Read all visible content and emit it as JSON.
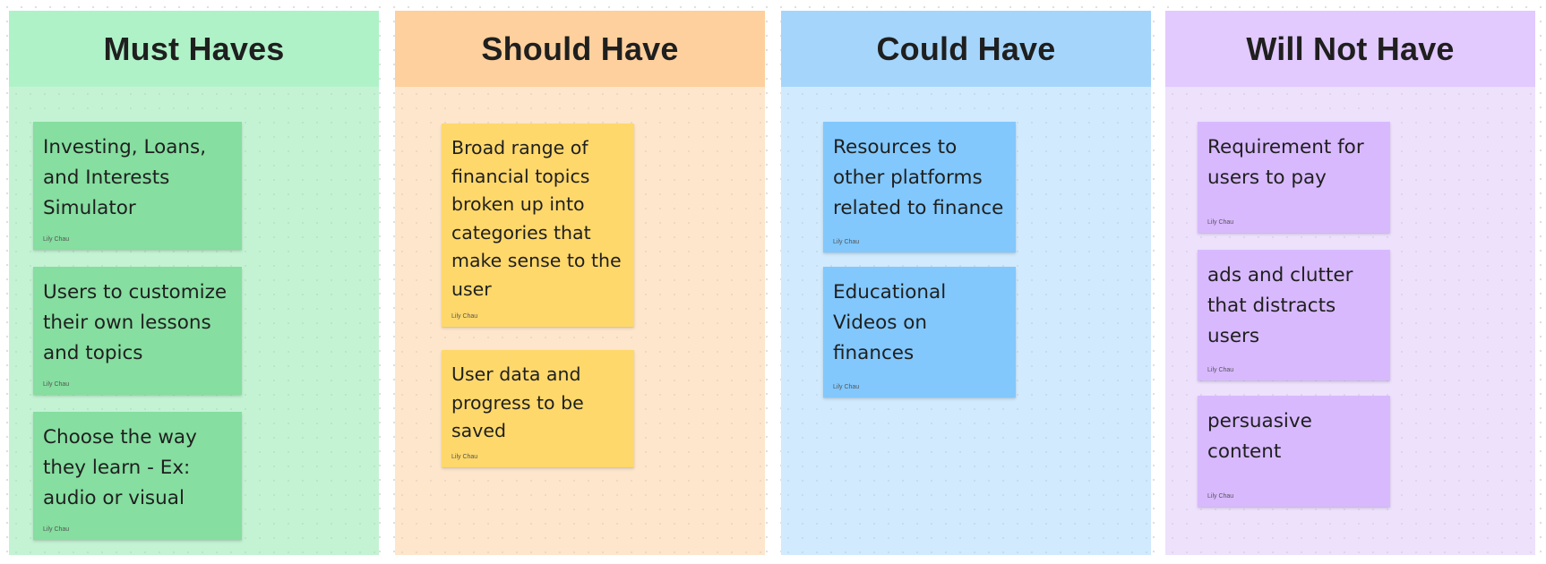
{
  "colors": {
    "must_header": "#b0f2c8",
    "must_body": "#c4f3d4",
    "must_sticky": "#86dea0",
    "should_header": "#fdd09d",
    "should_body": "#fde6cc",
    "should_sticky": "#fed86b",
    "could_header": "#a5d5fb",
    "could_body": "#d1eafd",
    "could_sticky": "#82c8fd",
    "wont_header": "#e2c9fe",
    "wont_body": "#ede1fc",
    "wont_sticky": "#d8b9fe"
  },
  "columns": [
    {
      "title": "Must Haves",
      "notes": [
        {
          "text": "Investing, Loans, and Interests Simulator",
          "author": "Lily Chau"
        },
        {
          "text": "Users to customize their own lessons and topics",
          "author": "Lily Chau"
        },
        {
          "text": "Choose the way they learn - Ex: audio or visual",
          "author": "Lily Chau"
        }
      ]
    },
    {
      "title": "Should Have",
      "notes": [
        {
          "text": "Broad range of financial topics broken up into categories that make sense to the user",
          "author": "Lily Chau"
        },
        {
          "text": "User data and progress to be saved",
          "author": "Lily Chau"
        }
      ]
    },
    {
      "title": "Could Have",
      "notes": [
        {
          "text": "Resources to other platforms related to finance",
          "author": "Lily Chau"
        },
        {
          "text": "Educational Videos on finances",
          "author": "Lily Chau"
        }
      ]
    },
    {
      "title": "Will Not Have",
      "notes": [
        {
          "text": "Requirement for users to pay",
          "author": "Lily Chau"
        },
        {
          "text": "ads and clutter that distracts users",
          "author": "Lily Chau"
        },
        {
          "text": "persuasive content",
          "author": "Lily Chau"
        }
      ]
    }
  ]
}
